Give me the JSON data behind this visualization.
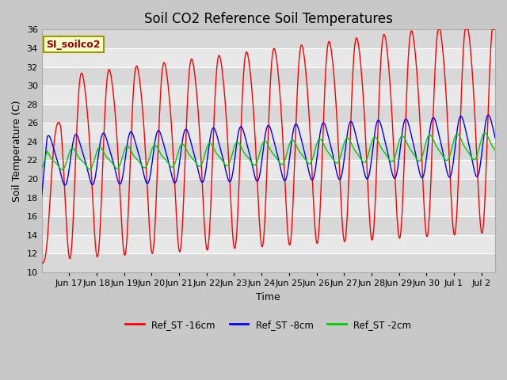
{
  "title": "Soil CO2 Reference Soil Temperatures",
  "xlabel": "Time",
  "ylabel": "Soil Temperature (C)",
  "ylim": [
    10,
    36
  ],
  "yticks": [
    10,
    12,
    14,
    16,
    18,
    20,
    22,
    24,
    26,
    28,
    30,
    32,
    34,
    36
  ],
  "line_colors": {
    "16cm": "#ff0000",
    "8cm": "#0000ff",
    "2cm": "#00cc00"
  },
  "legend_labels": [
    "Ref_ST -16cm",
    "Ref_ST -8cm",
    "Ref_ST -2cm"
  ],
  "annotation_label": "SI_soilco2",
  "annotation_color": "#990000",
  "annotation_bg": "#ffffcc",
  "annotation_edge": "#999900",
  "fig_facecolor": "#c8c8c8",
  "ax_facecolor": "#e0e0e0",
  "band_colors": [
    "#d8d8d8",
    "#e8e8e8"
  ],
  "grid_color": "#ffffff",
  "xtick_labels": [
    "Jun 17",
    "Jun 18",
    "Jun 19",
    "Jun 20",
    "Jun 21",
    "Jun 22",
    "Jun 23",
    "Jun 24",
    "Jun 25",
    "Jun 26",
    "Jun 27",
    "Jun 28",
    "Jun 29",
    "Jun 30",
    "Jul 1",
    "Jul 2"
  ],
  "title_fontsize": 12,
  "label_fontsize": 9,
  "tick_fontsize": 8
}
